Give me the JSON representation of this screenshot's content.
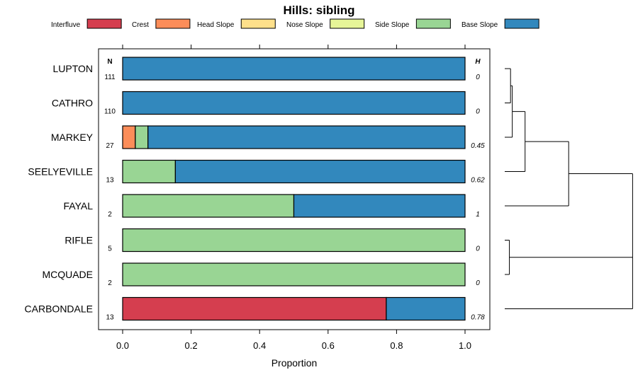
{
  "chart_data": {
    "type": "bar",
    "orientation": "horizontal",
    "stacked": true,
    "title": "Hills: sibling",
    "xlabel": "Proportion",
    "ylabel": "",
    "xlim": [
      0,
      1
    ],
    "xticks": [
      "0.0",
      "0.2",
      "0.4",
      "0.6",
      "0.8",
      "1.0"
    ],
    "xtick_values": [
      0,
      0.2,
      0.4,
      0.6,
      0.8,
      1.0
    ],
    "n_header": "N",
    "h_header": "H",
    "legend": [
      {
        "name": "Interfluve",
        "color": "#d53e4f"
      },
      {
        "name": "Crest",
        "color": "#fc8d59"
      },
      {
        "name": "Head Slope",
        "color": "#fee08b"
      },
      {
        "name": "Nose Slope",
        "color": "#e6f598"
      },
      {
        "name": "Side Slope",
        "color": "#99d594"
      },
      {
        "name": "Base Slope",
        "color": "#3288bd"
      }
    ],
    "categories": [
      "LUPTON",
      "CATHRO",
      "MARKEY",
      "SEELYEVILLE",
      "FAYAL",
      "RIFLE",
      "MCQUADE",
      "CARBONDALE"
    ],
    "n": [
      "111",
      "110",
      "27",
      "13",
      "2",
      "5",
      "2",
      "13"
    ],
    "h": [
      "0",
      "0",
      "0.45",
      "0.62",
      "1",
      "0",
      "0",
      "0.78"
    ],
    "series": [
      {
        "name": "Interfluve",
        "values": [
          0,
          0,
          0,
          0,
          0,
          0,
          0,
          0.77
        ]
      },
      {
        "name": "Crest",
        "values": [
          0,
          0,
          0.037,
          0,
          0,
          0,
          0,
          0
        ]
      },
      {
        "name": "Head Slope",
        "values": [
          0,
          0,
          0,
          0,
          0,
          0,
          0,
          0
        ]
      },
      {
        "name": "Nose Slope",
        "values": [
          0,
          0,
          0,
          0,
          0,
          0,
          0,
          0
        ]
      },
      {
        "name": "Side Slope",
        "values": [
          0,
          0,
          0.037,
          0.154,
          0.5,
          1,
          1,
          0
        ]
      },
      {
        "name": "Base Slope",
        "values": [
          1,
          1,
          0.926,
          0.846,
          0.5,
          0,
          0,
          0.23
        ]
      }
    ],
    "dendrogram": {
      "merges": [
        {
          "a": "LUPTON",
          "b": "CATHRO",
          "height": 0.1
        },
        {
          "a": "RIFLE",
          "b": "MCQUADE",
          "height": 0.08
        },
        {
          "a": "LUPTON+CATHRO",
          "b": "MARKEY",
          "height": 0.13
        },
        {
          "a": "LUPTON+CATHRO+MARKEY",
          "b": "SEELYEVILLE",
          "height": 0.35
        },
        {
          "a": "LUPTON+CATHRO+MARKEY+SEELYEVILLE",
          "b": "FAYAL",
          "height": 1.1
        },
        {
          "a": "RIFLE+MCQUADE",
          "b": "CARBONDALE",
          "height": 2.2
        },
        {
          "a": "ALL_TOP",
          "b": "ALL_BOTTOM",
          "height": 2.2
        }
      ]
    }
  }
}
